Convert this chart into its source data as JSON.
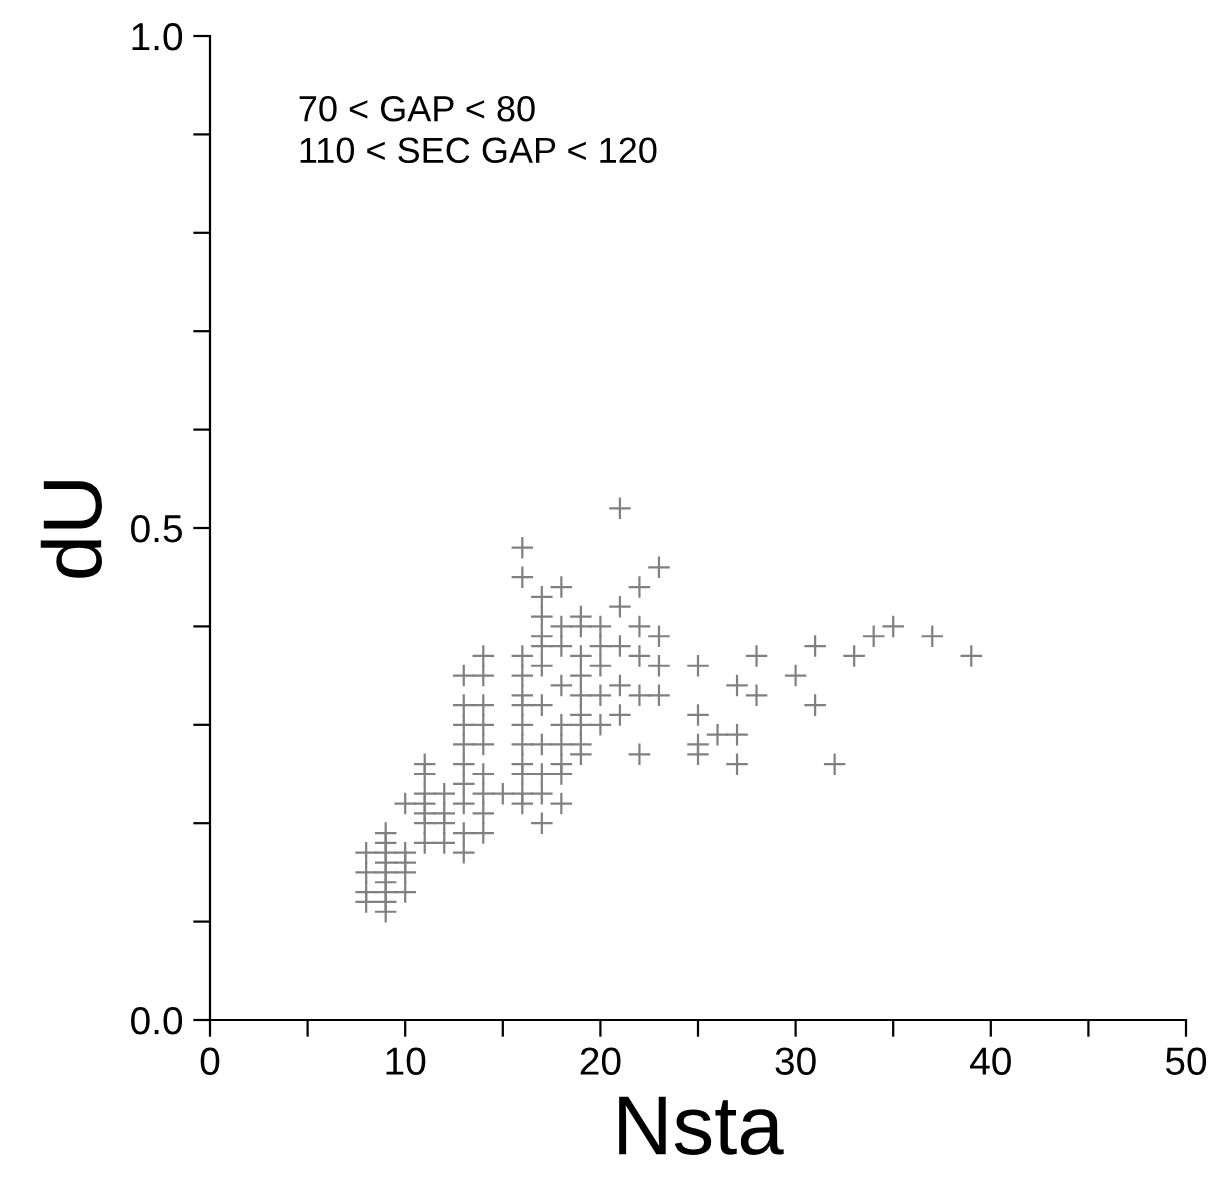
{
  "chart_data": {
    "type": "scatter",
    "xlabel": "Nsta",
    "ylabel": "dU",
    "annotations": [
      "70 < GAP < 80\n110 < SEC GAP < 120"
    ],
    "xlim": [
      0,
      50
    ],
    "ylim": [
      0,
      1
    ],
    "xticks": [
      0,
      {
        "value": 5,
        "label": null
      },
      10,
      {
        "value": 15,
        "label": null
      },
      20,
      {
        "value": 25,
        "label": null
      },
      30,
      {
        "value": 35,
        "label": null
      },
      40,
      {
        "value": 45,
        "label": null
      },
      50
    ],
    "yticks": [
      {
        "value": 0,
        "label": "0.0"
      },
      {
        "value": 0.1,
        "label": null
      },
      {
        "value": 0.2,
        "label": null
      },
      {
        "value": 0.3,
        "label": null
      },
      {
        "value": 0.4,
        "label": null
      },
      0.5,
      {
        "value": 0.6,
        "label": null
      },
      {
        "value": 0.7,
        "label": null
      },
      {
        "value": 0.8,
        "label": null
      },
      {
        "value": 0.9,
        "label": null
      },
      {
        "value": 1,
        "label": "1.0"
      }
    ],
    "marker": "cross",
    "grid": false,
    "series": [
      {
        "color": "#808080",
        "x": [
          8,
          8,
          8,
          8,
          9,
          9,
          9,
          9,
          9,
          9,
          9,
          9,
          9,
          10,
          10,
          10,
          10,
          10,
          11,
          11,
          11,
          11,
          11,
          11,
          11,
          12,
          12,
          12,
          12,
          13,
          13,
          13,
          13,
          13,
          13,
          13,
          13,
          13,
          14,
          14,
          14,
          14,
          14,
          14,
          14,
          14,
          14,
          15,
          16,
          16,
          16,
          16,
          16,
          16,
          16,
          16,
          16,
          16,
          16,
          16,
          17,
          17,
          17,
          17,
          17,
          17,
          17,
          17,
          17,
          17,
          18,
          18,
          18,
          18,
          18,
          18,
          18,
          18,
          18,
          19,
          19,
          19,
          19,
          19,
          19,
          19,
          19,
          19,
          20,
          20,
          20,
          20,
          20,
          21,
          21,
          21,
          21,
          21,
          22,
          22,
          22,
          22,
          22,
          23,
          23,
          23,
          23,
          25,
          25,
          25,
          25,
          26,
          27,
          27,
          27,
          28,
          28,
          30,
          31,
          31,
          32,
          33,
          34,
          35,
          37,
          39
        ],
        "values": [
          0.17,
          0.15,
          0.13,
          0.12,
          0.19,
          0.18,
          0.17,
          0.16,
          0.15,
          0.14,
          0.13,
          0.12,
          0.11,
          0.22,
          0.17,
          0.16,
          0.15,
          0.13,
          0.26,
          0.25,
          0.23,
          0.22,
          0.21,
          0.2,
          0.18,
          0.23,
          0.21,
          0.2,
          0.18,
          0.35,
          0.32,
          0.3,
          0.28,
          0.26,
          0.24,
          0.22,
          0.19,
          0.17,
          0.37,
          0.35,
          0.32,
          0.3,
          0.28,
          0.25,
          0.23,
          0.21,
          0.19,
          0.23,
          0.48,
          0.45,
          0.37,
          0.35,
          0.33,
          0.32,
          0.3,
          0.28,
          0.26,
          0.25,
          0.23,
          0.22,
          0.43,
          0.41,
          0.39,
          0.38,
          0.36,
          0.32,
          0.28,
          0.25,
          0.23,
          0.2,
          0.44,
          0.4,
          0.38,
          0.34,
          0.3,
          0.28,
          0.26,
          0.25,
          0.22,
          0.41,
          0.4,
          0.37,
          0.35,
          0.33,
          0.31,
          0.3,
          0.28,
          0.27,
          0.4,
          0.38,
          0.36,
          0.33,
          0.3,
          0.52,
          0.42,
          0.38,
          0.34,
          0.31,
          0.44,
          0.4,
          0.37,
          0.33,
          0.27,
          0.46,
          0.39,
          0.36,
          0.33,
          0.36,
          0.31,
          0.28,
          0.27,
          0.29,
          0.34,
          0.29,
          0.26,
          0.37,
          0.33,
          0.35,
          0.38,
          0.32,
          0.26,
          0.37,
          0.39,
          0.4,
          0.39,
          0.37
        ]
      }
    ]
  }
}
